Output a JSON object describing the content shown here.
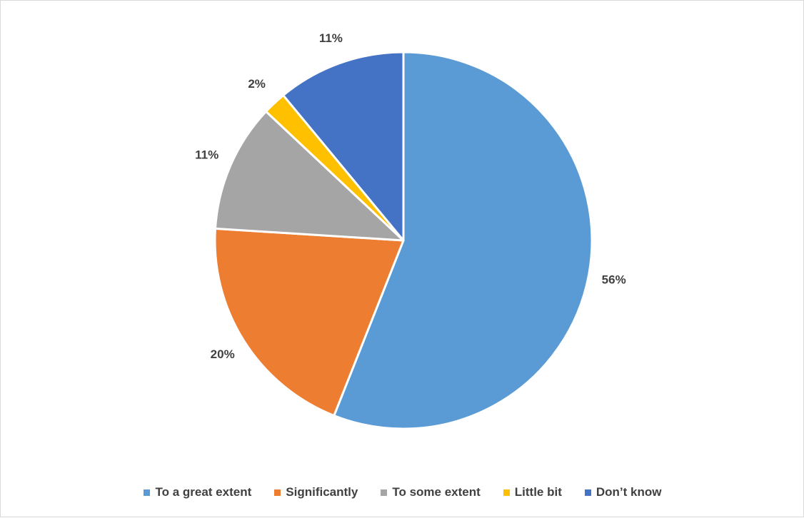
{
  "chart_data": {
    "type": "pie",
    "title": "",
    "legend_position": "bottom",
    "categories": [
      "To a great extent",
      "Significantly",
      "To some extent",
      "Little bit",
      "Don’t know"
    ],
    "values": [
      56,
      20,
      11,
      2,
      11
    ],
    "data_labels": [
      "56%",
      "20%",
      "11%",
      "2%",
      "11%"
    ],
    "colors": [
      "#5b9bd5",
      "#ed7d31",
      "#a5a5a5",
      "#ffc000",
      "#4472c4"
    ]
  }
}
